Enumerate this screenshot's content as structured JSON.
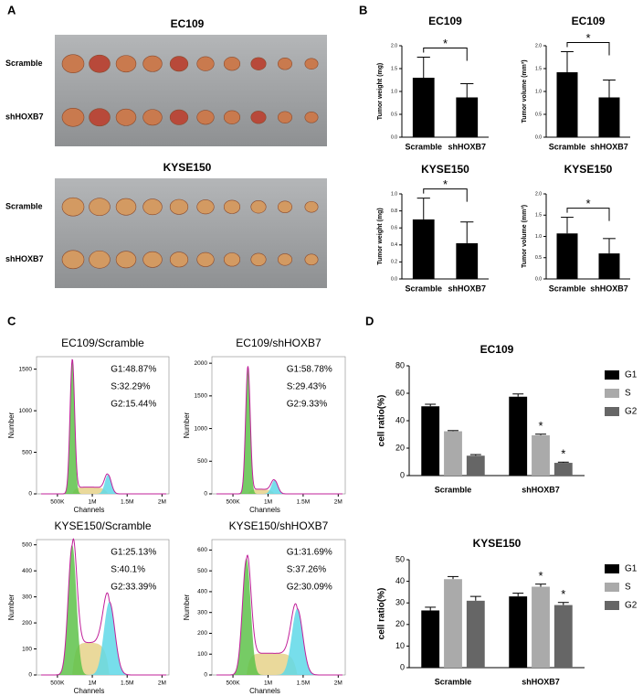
{
  "panel_labels": [
    "A",
    "B",
    "C",
    "D"
  ],
  "photos": [
    {
      "title": "EC109",
      "rows": [
        "Scramble",
        "shHOXB7"
      ]
    },
    {
      "title": "KYSE150",
      "rows": [
        "Scramble",
        "shHOXB7"
      ]
    }
  ],
  "chart_data": [
    {
      "type": "bar",
      "title": "EC109",
      "ylabel": "Tumor weight (mg)",
      "categories": [
        "Scramble",
        "shHOXB7"
      ],
      "values": [
        1.3,
        0.87
      ],
      "errors": [
        0.45,
        0.3
      ],
      "color": "#000000",
      "ylim": [
        0,
        2
      ],
      "yticks": [
        {
          "value": 0,
          "label": "0.0"
        },
        {
          "value": 0.5,
          "label": "0.5"
        },
        {
          "value": 1,
          "label": "1.0"
        },
        {
          "value": 1.5,
          "label": "1.5"
        },
        {
          "value": 2,
          "label": "2.0"
        }
      ],
      "significance": "*"
    },
    {
      "type": "bar",
      "title": "EC109",
      "ylabel": "Tumor volume (mm³)",
      "categories": [
        "Scramble",
        "shHOXB7"
      ],
      "values": [
        1.42,
        0.87
      ],
      "errors": [
        0.45,
        0.38
      ],
      "color": "#000000",
      "ylim": [
        0,
        2
      ],
      "yticks": [
        {
          "value": 0,
          "label": "0.0"
        },
        {
          "value": 0.5,
          "label": "0.5"
        },
        {
          "value": 1,
          "label": "1.0"
        },
        {
          "value": 1.5,
          "label": "1.5"
        },
        {
          "value": 2,
          "label": "2.0"
        }
      ],
      "significance": "*"
    },
    {
      "type": "bar",
      "title": "KYSE150",
      "ylabel": "Tumor weight (mg)",
      "categories": [
        "Scramble",
        "shHOXB7"
      ],
      "values": [
        0.7,
        0.42
      ],
      "errors": [
        0.25,
        0.25
      ],
      "color": "#000000",
      "ylim": [
        0,
        1
      ],
      "yticks": [
        {
          "value": 0,
          "label": "0.0"
        },
        {
          "value": 0.2,
          "label": "0.2"
        },
        {
          "value": 0.4,
          "label": "0.4"
        },
        {
          "value": 0.6,
          "label": "0.6"
        },
        {
          "value": 0.8,
          "label": "0.8"
        },
        {
          "value": 1,
          "label": "1.0"
        }
      ],
      "significance": "*"
    },
    {
      "type": "bar",
      "title": "KYSE150",
      "ylabel": "Tumor volume (mm³)",
      "categories": [
        "Scramble",
        "shHOXB7"
      ],
      "values": [
        1.07,
        0.6
      ],
      "errors": [
        0.38,
        0.35
      ],
      "color": "#000000",
      "ylim": [
        0,
        2
      ],
      "yticks": [
        {
          "value": 0,
          "label": "0.0"
        },
        {
          "value": 0.5,
          "label": "0.5"
        },
        {
          "value": 1,
          "label": "1.0"
        },
        {
          "value": 1.5,
          "label": "1.5"
        },
        {
          "value": 2,
          "label": "2.0"
        }
      ],
      "significance": "*"
    },
    {
      "type": "histogram",
      "title": "EC109/Scramble",
      "xlabel": "Channels",
      "ylabel": "Number",
      "stats": [
        "G1:48.87%",
        "S:32.29%",
        "G2:15.44%"
      ],
      "xlim": [
        200000,
        2100000
      ],
      "xticks": [
        {
          "value": 500000,
          "label": "500K"
        },
        {
          "value": 1000000,
          "label": "1M"
        },
        {
          "value": 1500000,
          "label": "1.5M"
        },
        {
          "value": 2000000,
          "label": "2M"
        }
      ],
      "ylim": [
        0,
        1650
      ],
      "yticks": [
        0,
        500,
        1000,
        1500
      ]
    },
    {
      "type": "histogram",
      "title": "EC109/shHOXB7",
      "xlabel": "Channels",
      "ylabel": "Number",
      "stats": [
        "G1:58.78%",
        "S:29.43%",
        "G2:9.33%"
      ],
      "xlim": [
        200000,
        2100000
      ],
      "xticks": [
        {
          "value": 500000,
          "label": "500K"
        },
        {
          "value": 1000000,
          "label": "1M"
        },
        {
          "value": 1500000,
          "label": "1.5M"
        },
        {
          "value": 2000000,
          "label": "2M"
        }
      ],
      "ylim": [
        0,
        2100
      ],
      "yticks": [
        0,
        500,
        1000,
        1500,
        2000
      ]
    },
    {
      "type": "histogram",
      "title": "KYSE150/Scramble",
      "xlabel": "Channels",
      "ylabel": "Number",
      "stats": [
        "G1:25.13%",
        "S:40.1%",
        "G2:33.39%"
      ],
      "xlim": [
        200000,
        2100000
      ],
      "xticks": [
        {
          "value": 500000,
          "label": "500K"
        },
        {
          "value": 1000000,
          "label": "1M"
        },
        {
          "value": 1500000,
          "label": "1.5M"
        },
        {
          "value": 2000000,
          "label": "2M"
        }
      ],
      "ylim": [
        0,
        520
      ],
      "yticks": [
        0,
        100,
        200,
        300,
        400,
        500
      ]
    },
    {
      "type": "histogram",
      "title": "KYSE150/shHOXB7",
      "xlabel": "Channels",
      "ylabel": "Number",
      "stats": [
        "G1:31.69%",
        "S:37.26%",
        "G2:30.09%"
      ],
      "xlim": [
        200000,
        2100000
      ],
      "xticks": [
        {
          "value": 500000,
          "label": "500K"
        },
        {
          "value": 1000000,
          "label": "1M"
        },
        {
          "value": 1500000,
          "label": "1.5M"
        },
        {
          "value": 2000000,
          "label": "2M"
        }
      ],
      "ylim": [
        0,
        650
      ],
      "yticks": [
        0,
        100,
        200,
        300,
        400,
        500,
        600
      ]
    },
    {
      "type": "grouped-bar",
      "title": "EC109",
      "ylabel": "cell ratio(%)",
      "categories": [
        "Scramble",
        "shHOXB7"
      ],
      "ylim": [
        0,
        80
      ],
      "yticks": [
        0,
        20,
        40,
        60,
        80
      ],
      "series": [
        {
          "name": "G1",
          "color": "#000000",
          "values": [
            50.5,
            57.5
          ],
          "errors": [
            1.5,
            2
          ]
        },
        {
          "name": "S",
          "color": "#aaaaaa",
          "values": [
            32.3,
            29.4
          ],
          "errors": [
            0.5,
            0.8
          ],
          "annotations": [
            null,
            "*"
          ]
        },
        {
          "name": "G2",
          "color": "#666666",
          "values": [
            14.5,
            9.3
          ],
          "errors": [
            0.8,
            0.5
          ],
          "annotations": [
            null,
            "*"
          ]
        }
      ]
    },
    {
      "type": "grouped-bar",
      "title": "KYSE150",
      "ylabel": "cell ratio(%)",
      "categories": [
        "Scramble",
        "shHOXB7"
      ],
      "ylim": [
        0,
        50
      ],
      "yticks": [
        0,
        10,
        20,
        30,
        40,
        50
      ],
      "series": [
        {
          "name": "G1",
          "color": "#000000",
          "values": [
            26.5,
            33
          ],
          "errors": [
            1.5,
            1.5
          ]
        },
        {
          "name": "S",
          "color": "#aaaaaa",
          "values": [
            41,
            37.5
          ],
          "errors": [
            1.2,
            1.2
          ],
          "annotations": [
            null,
            "*"
          ]
        },
        {
          "name": "G2",
          "color": "#666666",
          "values": [
            31,
            29
          ],
          "errors": [
            2,
            1.2
          ],
          "annotations": [
            null,
            "*"
          ]
        }
      ]
    }
  ]
}
